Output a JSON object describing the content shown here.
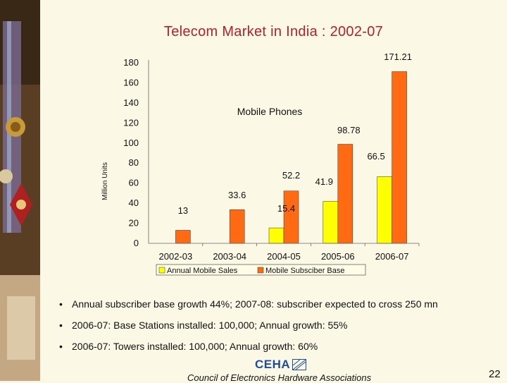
{
  "slide": {
    "title": "Telecom Market in India : 2002-07",
    "bullets": [
      "Annual subscriber base growth 44%; 2007-08: subscriber expected to cross 250 mn",
      "2006-07: Base Stations installed: 100,000; Annual growth: 55%",
      "2006-07: Towers installed: 100,000; Annual growth: 60%"
    ],
    "bullet_symbol": "•",
    "footer": "Council of Electronics Hardware Associations",
    "logo_text": "CEHA",
    "page_number": "22"
  },
  "chart_data": {
    "type": "bar",
    "annotation": "Mobile Phones",
    "ylabel": "Million Units",
    "ylim": [
      0,
      180
    ],
    "yticks": [
      0,
      20,
      40,
      60,
      80,
      100,
      120,
      140,
      160,
      180
    ],
    "categories": [
      "2002-03",
      "2003-04",
      "2004-05",
      "2005-06",
      "2006-07"
    ],
    "series": [
      {
        "name": "Annual Mobile Sales",
        "color": "#ffff00",
        "values": [
          null,
          null,
          15.4,
          41.9,
          66.5
        ],
        "labels": [
          "",
          "",
          "15.4",
          "41.9",
          "66.5"
        ]
      },
      {
        "name": "Mobile Subsciber Base",
        "color": "#ff6a13",
        "values": [
          13,
          33.6,
          52.2,
          98.78,
          171.21
        ],
        "labels": [
          "13",
          "33.6",
          "52.2",
          "98.78",
          "171.21"
        ]
      }
    ],
    "legend_position": "bottom"
  }
}
